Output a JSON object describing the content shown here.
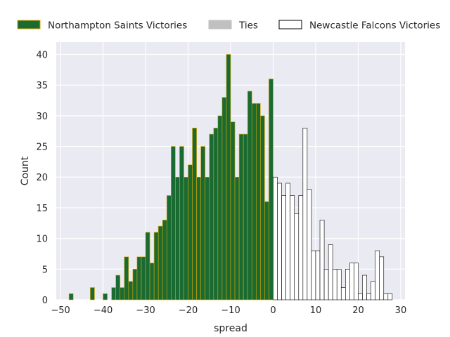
{
  "chart_data": {
    "type": "bar",
    "xlabel": "spread",
    "ylabel": "Count",
    "xlim": [
      -51,
      31
    ],
    "ylim": [
      0,
      42
    ],
    "xticks": [
      -50,
      -40,
      -30,
      -20,
      -10,
      0,
      10,
      20,
      30
    ],
    "yticks": [
      0,
      5,
      10,
      15,
      20,
      25,
      30,
      35,
      40
    ],
    "bin_width": 1,
    "grid": true,
    "legend_position": "top",
    "legend": [
      {
        "label": "Northampton Saints Victories",
        "fill": "#1a6b32",
        "edge": "#d9a400"
      },
      {
        "label": "Ties",
        "fill": "#c0c0c0",
        "edge": "#c0c0c0"
      },
      {
        "label": "Newcastle Falcons Victories",
        "fill": "#ffffff",
        "edge": "#000000"
      }
    ],
    "series": [
      {
        "name": "Northampton Saints Victories",
        "fill": "#1a6b32",
        "edge": "#d9a400",
        "x": [
          -48,
          -43,
          -40,
          -38,
          -37,
          -36,
          -35,
          -34,
          -33,
          -32,
          -31,
          -30,
          -29,
          -28,
          -27,
          -26,
          -25,
          -24,
          -23,
          -22,
          -21,
          -20,
          -19,
          -18,
          -17,
          -16,
          -15,
          -14,
          -13,
          -12,
          -11,
          -10,
          -9,
          -8,
          -7,
          -6,
          -5,
          -4,
          -3,
          -2,
          -1
        ],
        "values": [
          1,
          2,
          1,
          2,
          4,
          2,
          7,
          3,
          5,
          7,
          7,
          11,
          6,
          11,
          12,
          13,
          17,
          25,
          20,
          25,
          20,
          22,
          28,
          20,
          25,
          20,
          27,
          28,
          30,
          33,
          40,
          29,
          20,
          27,
          27,
          34,
          32,
          32,
          30,
          16,
          36
        ]
      },
      {
        "name": "Ties",
        "fill": "#c0c0c0",
        "edge": "#c0c0c0",
        "x": [
          0
        ],
        "values": [
          20
        ]
      },
      {
        "name": "Newcastle Falcons Victories",
        "fill": "#ffffff",
        "edge": "#000000",
        "x": [
          0,
          1,
          2,
          3,
          4,
          5,
          6,
          7,
          8,
          9,
          10,
          11,
          12,
          13,
          14,
          15,
          16,
          17,
          18,
          19,
          20,
          21,
          22,
          23,
          24,
          25,
          26,
          27
        ],
        "values": [
          20,
          19,
          17,
          19,
          17,
          14,
          17,
          28,
          18,
          8,
          8,
          13,
          5,
          9,
          5,
          5,
          2,
          5,
          6,
          6,
          1,
          4,
          1,
          3,
          8,
          7,
          1,
          1
        ]
      }
    ]
  }
}
